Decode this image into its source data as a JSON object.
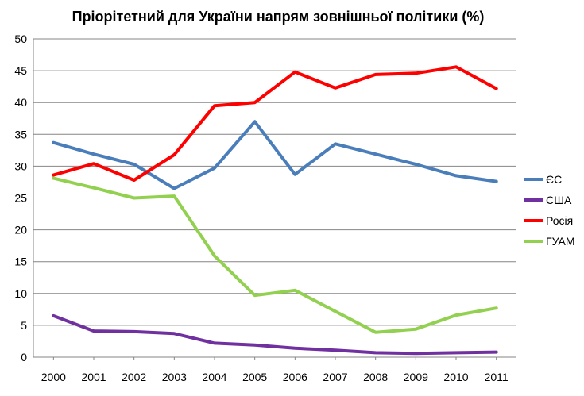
{
  "chart_data": {
    "type": "line",
    "title": "Пріорітетний для України напрям зовнішньої політики (%)",
    "categories": [
      "2000",
      "2001",
      "2002",
      "2003",
      "2004",
      "2005",
      "2006",
      "2007",
      "2008",
      "2009",
      "2010",
      "2011"
    ],
    "ylim": [
      0,
      50
    ],
    "yticks": [
      "0",
      "5",
      "10",
      "15",
      "20",
      "25",
      "30",
      "35",
      "40",
      "45",
      "50"
    ],
    "grid": true,
    "legend_position": "right",
    "series": [
      {
        "name": "ЄС",
        "color": "#4a7ebb",
        "values": [
          33.7,
          31.9,
          30.3,
          26.5,
          29.7,
          37.0,
          28.7,
          33.5,
          31.9,
          30.3,
          28.5,
          27.6
        ]
      },
      {
        "name": "США",
        "color": "#7030a0",
        "values": [
          6.5,
          4.1,
          4.0,
          3.7,
          2.2,
          1.9,
          1.4,
          1.1,
          0.7,
          0.6,
          0.7,
          0.8
        ]
      },
      {
        "name": "Росія",
        "color": "#ff0000",
        "values": [
          28.6,
          30.4,
          27.8,
          31.8,
          39.5,
          40.0,
          44.8,
          42.3,
          44.4,
          44.6,
          45.6,
          42.2
        ]
      },
      {
        "name": "ГУАМ",
        "color": "#92d050",
        "values": [
          28.1,
          26.6,
          25.0,
          25.3,
          15.9,
          9.7,
          10.5,
          7.2,
          3.9,
          4.4,
          6.6,
          7.7
        ]
      }
    ]
  }
}
